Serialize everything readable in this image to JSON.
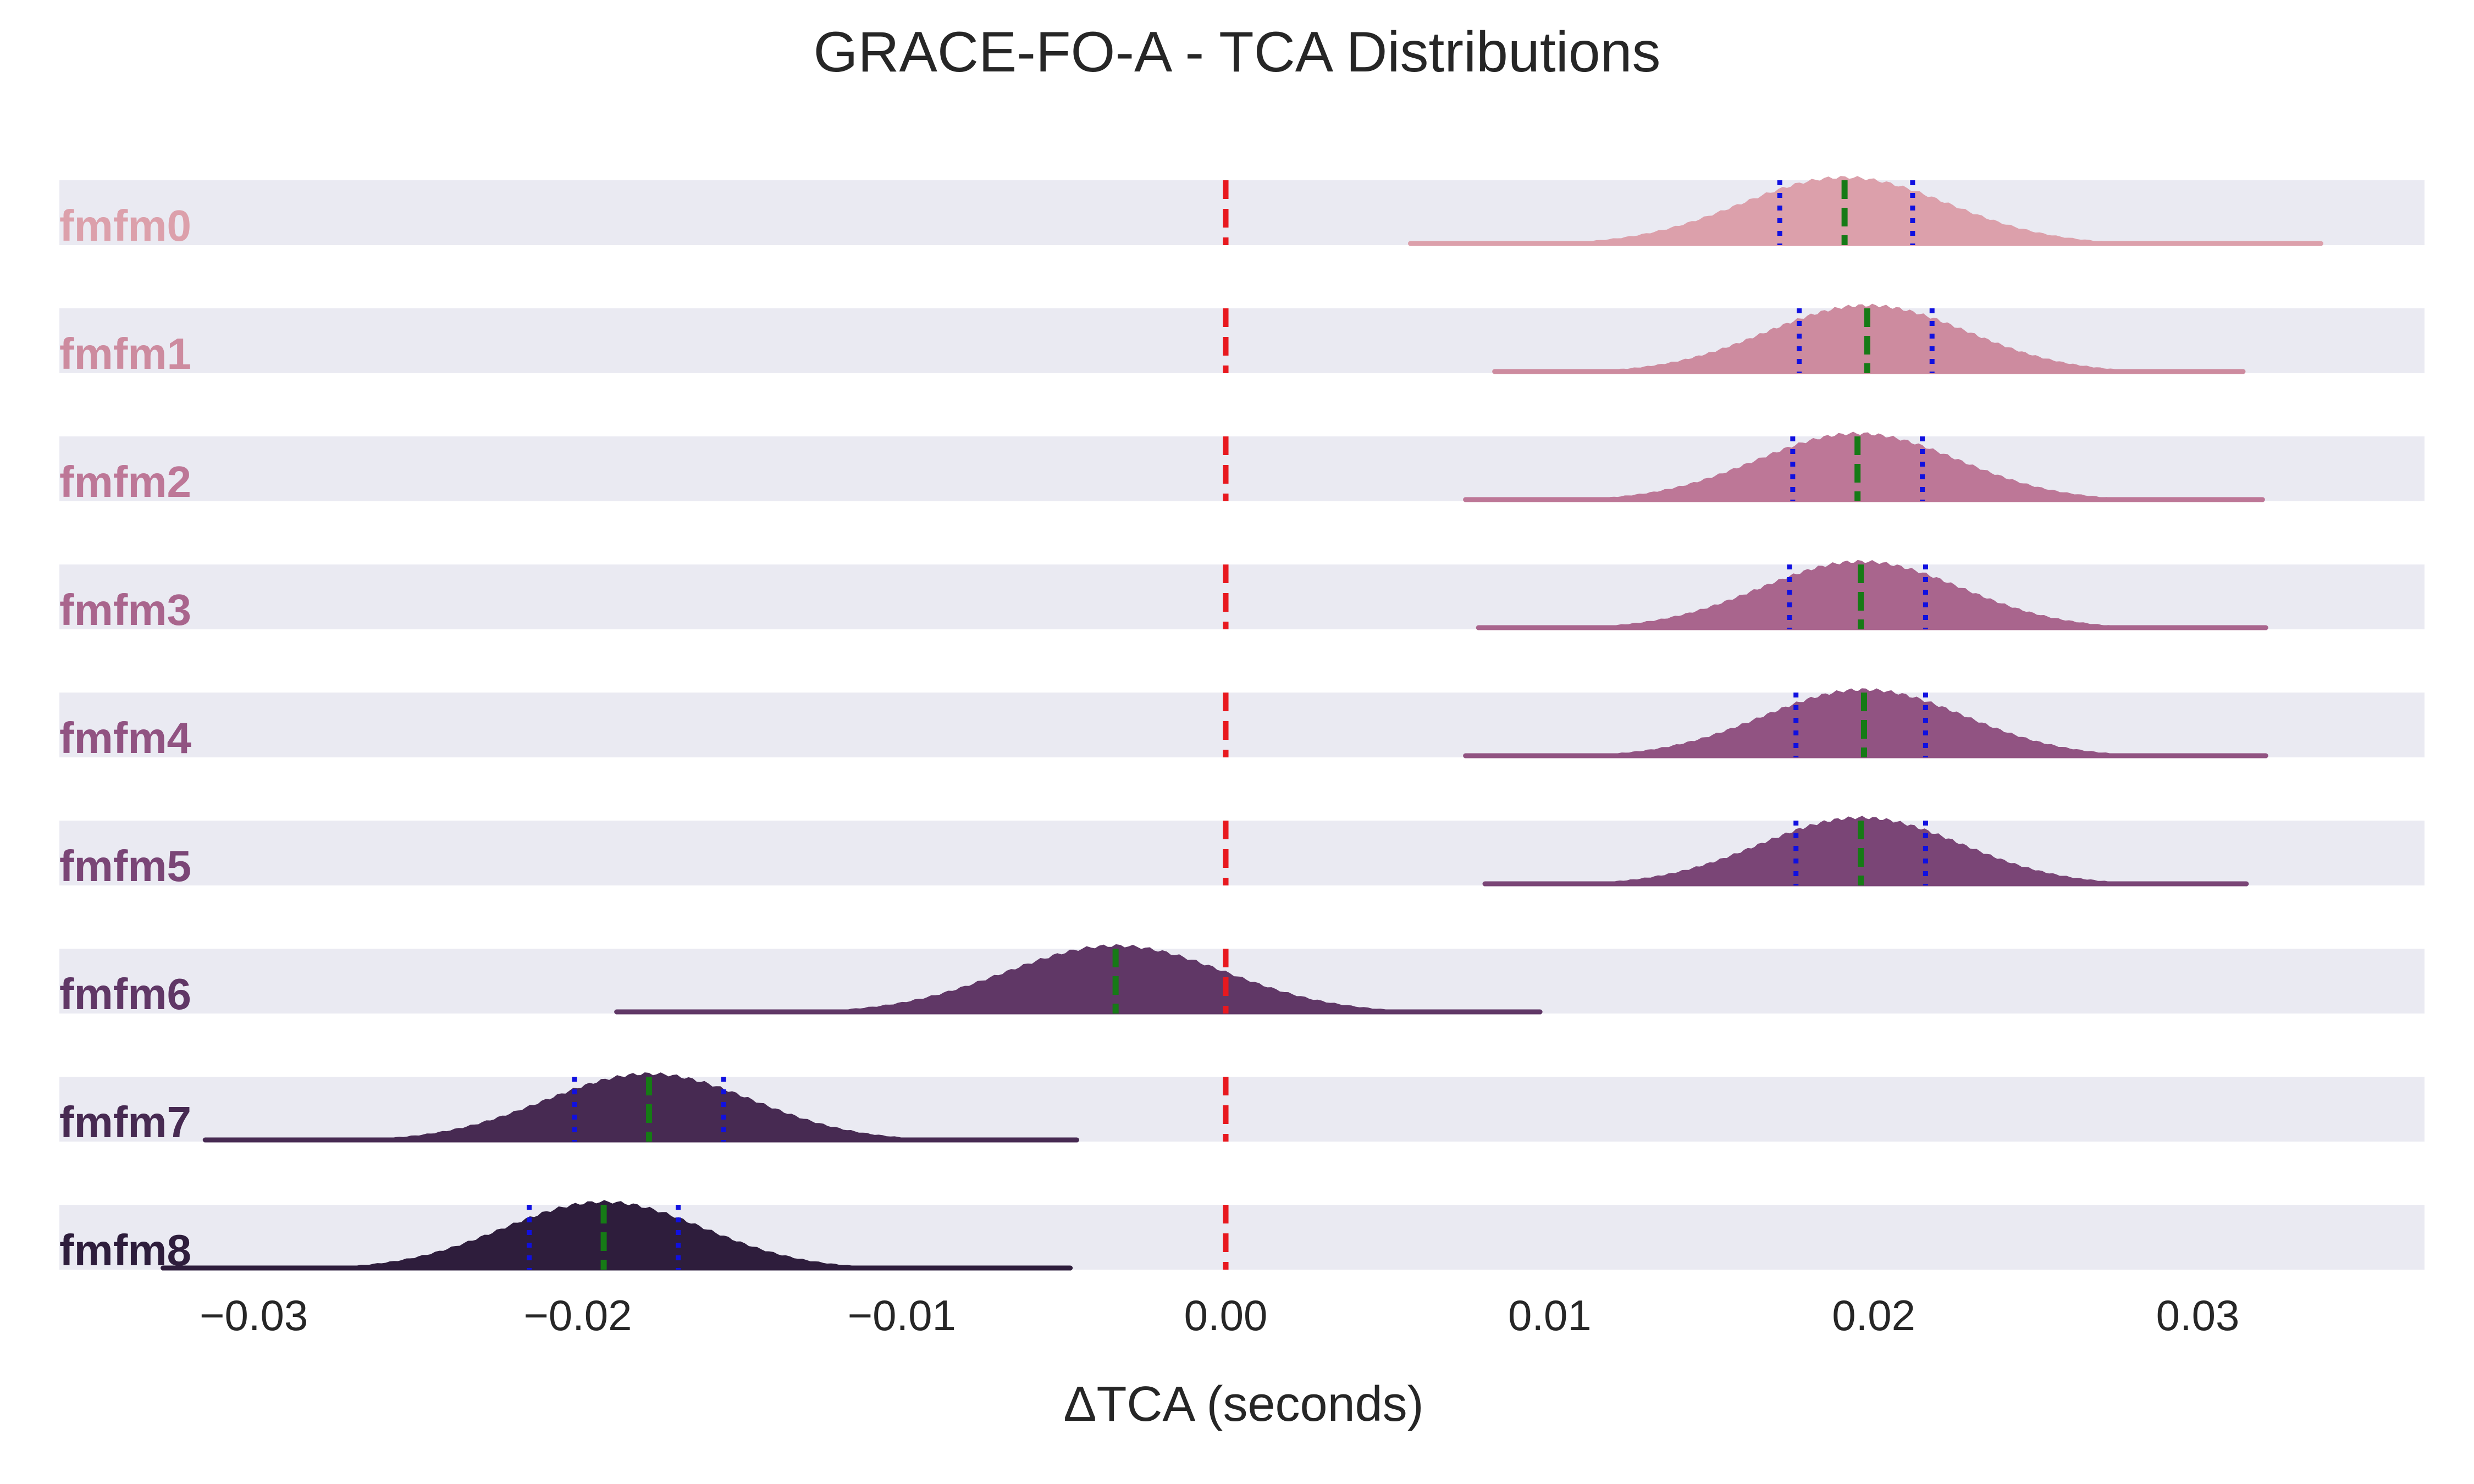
{
  "chart_data": {
    "type": "ridgeline",
    "title": "GRACE-FO-A - TCA Distributions",
    "xlabel": "ΔTCA (seconds)",
    "xlim": [
      -0.036,
      0.037
    ],
    "xticks": [
      -0.03,
      -0.02,
      -0.01,
      0.0,
      0.01,
      0.02,
      0.03
    ],
    "xtick_labels": [
      "−0.03",
      "−0.02",
      "−0.01",
      "0.00",
      "0.01",
      "0.02",
      "0.03"
    ],
    "reference_line": {
      "x": 0.0,
      "style": "dashed",
      "color": "#e8191f"
    },
    "row_band_color": "#eaeaf2",
    "series": [
      {
        "name": "fmfm0",
        "color": "#dca0ab",
        "min": 0.0057,
        "max": 0.0338,
        "median": 0.0191,
        "q_low": 0.0171,
        "q_high": 0.0212,
        "sd": 0.0032
      },
      {
        "name": "fmfm1",
        "color": "#cd8b9f",
        "min": 0.0083,
        "max": 0.0314,
        "median": 0.0198,
        "q_low": 0.0177,
        "q_high": 0.0218,
        "sd": 0.0031
      },
      {
        "name": "fmfm2",
        "color": "#bd7797",
        "min": 0.0074,
        "max": 0.032,
        "median": 0.0195,
        "q_low": 0.0175,
        "q_high": 0.0215,
        "sd": 0.0031
      },
      {
        "name": "fmfm3",
        "color": "#a9658d",
        "min": 0.0078,
        "max": 0.0321,
        "median": 0.0196,
        "q_low": 0.0174,
        "q_high": 0.0216,
        "sd": 0.0031
      },
      {
        "name": "fmfm4",
        "color": "#915382",
        "min": 0.0074,
        "max": 0.0321,
        "median": 0.0197,
        "q_low": 0.0176,
        "q_high": 0.0216,
        "sd": 0.0031
      },
      {
        "name": "fmfm5",
        "color": "#7a4576",
        "min": 0.008,
        "max": 0.0315,
        "median": 0.0196,
        "q_low": 0.0176,
        "q_high": 0.0216,
        "sd": 0.0031
      },
      {
        "name": "fmfm6",
        "color": "#603766",
        "min": -0.0188,
        "max": 0.0097,
        "median": -0.0034,
        "q_low": null,
        "q_high": null,
        "sd": 0.0034
      },
      {
        "name": "fmfm7",
        "color": "#472a52",
        "min": -0.0315,
        "max": -0.0046,
        "median": -0.0178,
        "q_low": -0.0201,
        "q_high": -0.0155,
        "sd": 0.0032
      },
      {
        "name": "fmfm8",
        "color": "#2e1d3c",
        "min": -0.0328,
        "max": -0.0048,
        "median": -0.0192,
        "q_low": -0.0215,
        "q_high": -0.0169,
        "sd": 0.0031
      }
    ]
  }
}
